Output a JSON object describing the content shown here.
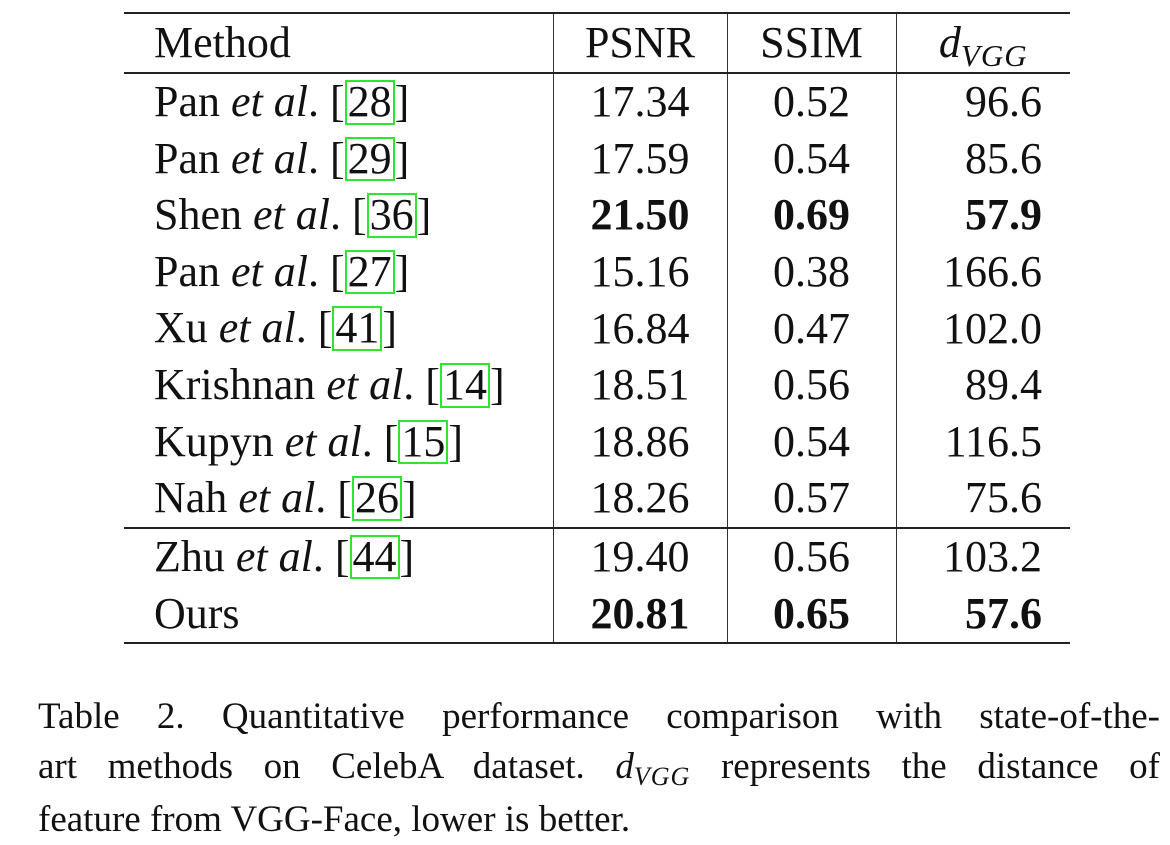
{
  "table": {
    "headers": {
      "method": "Method",
      "psnr": "PSNR",
      "ssim": "SSIM",
      "dvgg_symbol": "d",
      "dvgg_subscript": "VGG"
    },
    "etal_text": "et al",
    "rows": [
      {
        "author": "Pan",
        "cite": "28",
        "psnr": "17.34",
        "ssim": "0.52",
        "dvgg": "96.6"
      },
      {
        "author": "Pan",
        "cite": "29",
        "psnr": "17.59",
        "ssim": "0.54",
        "dvgg": "85.6"
      },
      {
        "author": "Shen",
        "cite": "36",
        "psnr": "21.50",
        "ssim": "0.69",
        "dvgg": "57.9"
      },
      {
        "author": "Pan",
        "cite": "27",
        "psnr": "15.16",
        "ssim": "0.38",
        "dvgg": "166.6"
      },
      {
        "author": "Xu",
        "cite": "41",
        "psnr": "16.84",
        "ssim": "0.47",
        "dvgg": "102.0"
      },
      {
        "author": "Krishnan",
        "cite": "14",
        "psnr": "18.51",
        "ssim": "0.56",
        "dvgg": "89.4"
      },
      {
        "author": "Kupyn",
        "cite": "15",
        "psnr": "18.86",
        "ssim": "0.54",
        "dvgg": "116.5"
      },
      {
        "author": "Nah",
        "cite": "26",
        "psnr": "18.26",
        "ssim": "0.57",
        "dvgg": "75.6"
      },
      {
        "author": "Zhu",
        "cite": "44",
        "psnr": "19.40",
        "ssim": "0.56",
        "dvgg": "103.2"
      },
      {
        "author": "Ours",
        "cite": "",
        "psnr": "20.81",
        "ssim": "0.65",
        "dvgg": "57.6"
      }
    ]
  },
  "caption": {
    "line1": "Table 2. Quantitative performance comparison with state-of-the-",
    "line2_before": "art methods on CelebA dataset.",
    "line2_symbol": "d",
    "line2_subscript": "VGG",
    "line2_after": "represents the distance of",
    "line3": "feature from VGG-Face, lower is better."
  },
  "colors": {
    "citation_box": "#2ee62e",
    "rule": "#222222"
  }
}
